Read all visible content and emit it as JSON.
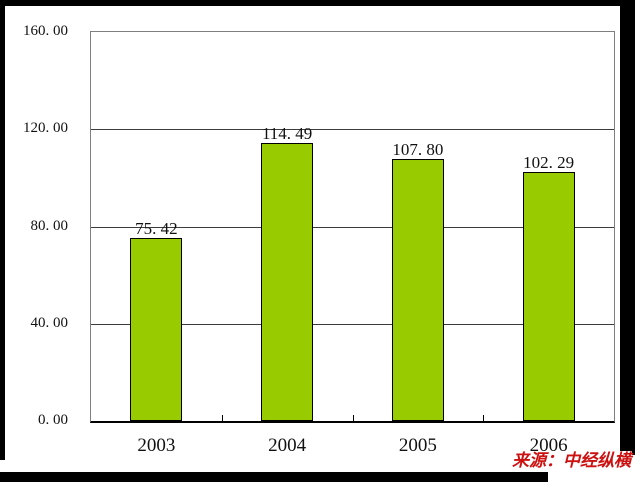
{
  "chart_data": {
    "type": "bar",
    "title": "",
    "categories": [
      "2003",
      "2004",
      "2005",
      "2006"
    ],
    "values": [
      75.42,
      114.49,
      107.8,
      102.29
    ],
    "bar_labels": [
      "75. 42",
      "114. 49",
      "107. 80",
      "102. 29"
    ],
    "xlabel": "",
    "ylabel": "",
    "ylim": [
      0,
      160
    ],
    "y_ticks": [
      0,
      40,
      80,
      120,
      160
    ],
    "y_tick_labels": [
      "0. 00",
      "40. 00",
      "80. 00",
      "120. 00",
      "160. 00"
    ],
    "grid": true,
    "legend": "none",
    "bar_color": "#99CC00",
    "bar_border_color": "#000000",
    "gridline_color": "#3c3c3c",
    "plot_border_color": "#7f7f7f"
  },
  "source_note": {
    "text": "来源：中经纵横",
    "color": "#CC1111"
  }
}
